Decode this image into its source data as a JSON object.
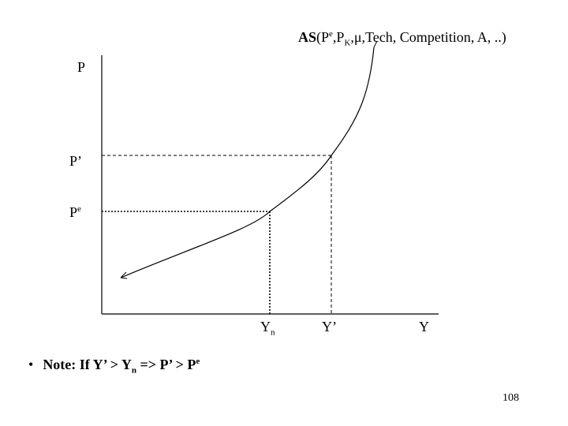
{
  "curve": {
    "label_prefix": "AS",
    "label_args_1": "(P",
    "label_sup_e": "e",
    "label_args_2": ",P",
    "label_sub_k": "K",
    "label_args_3": ",μ,Tech, Competition, A, ..)"
  },
  "axes": {
    "y_label": "P",
    "x_label": "Y"
  },
  "levels": {
    "p_prime": "P’",
    "pe_base": "P",
    "pe_sup": "e",
    "yn_base": "Y",
    "yn_sub": "n",
    "y_prime": "Y’"
  },
  "note": {
    "bullet": "•",
    "text_1": "Note: If Y’ > Y",
    "sub_n": "n",
    "text_2": " => P’ > P",
    "sup_e": "e"
  },
  "page_number": "108"
}
